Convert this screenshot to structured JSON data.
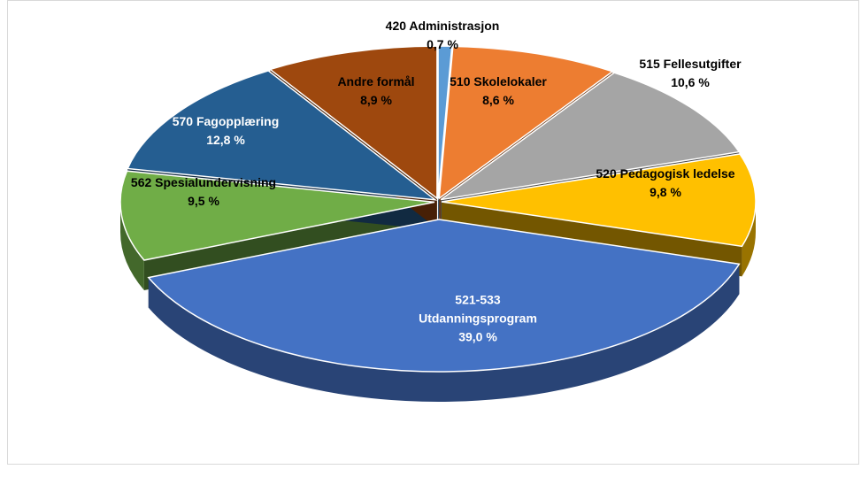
{
  "chart_data": {
    "type": "pie3d",
    "categories": [
      "420 Administrasjon",
      "510 Skolelokaler",
      "515 Fellesutgifter",
      "520 Pedagogisk ledelse",
      "521-533 Utdanningsprogram",
      "562 Spesialundervisning",
      "570 Fagopplæring",
      "Andre formål"
    ],
    "values": [
      0.7,
      8.6,
      10.6,
      9.8,
      39.0,
      9.5,
      12.8,
      8.9
    ],
    "value_labels": [
      "0,7 %",
      "8,6 %",
      "10,6 %",
      "9,8 %",
      "39,0 %",
      "9,5 %",
      "12,8 %",
      "8,9 %"
    ],
    "colors": [
      "#5b9bd5",
      "#ed7d31",
      "#a5a5a5",
      "#ffc000",
      "#4472c4",
      "#70ad47",
      "#255e91",
      "#9e480e"
    ]
  }
}
